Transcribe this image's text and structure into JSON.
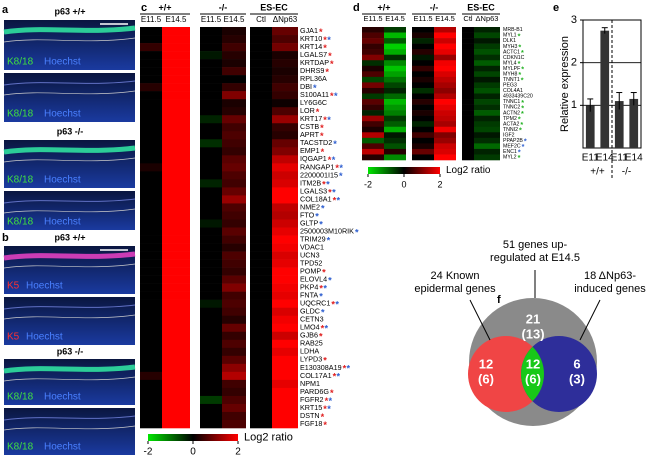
{
  "panel_a": {
    "letter": "a",
    "blocks": [
      {
        "genotype": "p63 +/+",
        "images": [
          {
            "stain": "K8/18",
            "counter": "Hoechst"
          },
          {
            "stain": "K8/18",
            "counter": "Hoechst"
          }
        ]
      },
      {
        "genotype": "p63 -/-",
        "images": [
          {
            "stain": "K8/18",
            "counter": "Hoechst"
          },
          {
            "stain": "K8/18",
            "counter": "Hoechst"
          }
        ]
      }
    ]
  },
  "panel_b": {
    "letter": "b",
    "blocks": [
      {
        "genotype": "p63 +/+",
        "images": [
          {
            "stain": "K5",
            "counter": "Hoechst"
          },
          {
            "stain": "K5",
            "counter": "Hoechst"
          }
        ]
      },
      {
        "genotype": "p63 -/-",
        "images": [
          {
            "stain": "K8/18",
            "counter": "Hoechst"
          },
          {
            "stain": "K8/18",
            "counter": "Hoechst"
          }
        ]
      }
    ]
  },
  "heatmap_c": {
    "letter": "c",
    "groups": [
      "+/+",
      "-/-",
      "ES-EC"
    ],
    "columns": [
      "E11.5",
      "E14.5",
      "E11.5",
      "E14.5",
      "Ctl",
      "ΔNp63"
    ],
    "range": [
      -2,
      2
    ],
    "colorbar_ticks": [
      -2,
      0,
      2
    ],
    "colorbar_label": "Log2 ratio",
    "star_symbol": "*",
    "genes": [
      {
        "name": "GJA1",
        "stars": [
          "#e02020"
        ]
      },
      {
        "name": "KRT10",
        "stars": [
          "#e02020",
          "#3060d0"
        ]
      },
      {
        "name": "KRT14",
        "stars": [
          "#e02020"
        ]
      },
      {
        "name": "LGALS7",
        "stars": [
          "#e02020"
        ]
      },
      {
        "name": "KRTDAP",
        "stars": [
          "#e02020"
        ]
      },
      {
        "name": "DHRS9",
        "stars": [
          "#e02020"
        ]
      },
      {
        "name": "RPL36A",
        "stars": []
      },
      {
        "name": "DBI",
        "stars": [
          "#3060d0"
        ]
      },
      {
        "name": "S100A11",
        "stars": [
          "#e02020",
          "#3060d0"
        ]
      },
      {
        "name": "LY6G6C",
        "stars": []
      },
      {
        "name": "LOR",
        "stars": [
          "#e02020"
        ]
      },
      {
        "name": "KRT17",
        "stars": [
          "#e02020",
          "#3060d0"
        ]
      },
      {
        "name": "CSTB",
        "stars": [
          "#e02020"
        ]
      },
      {
        "name": "APRT",
        "stars": [
          "#e02020"
        ]
      },
      {
        "name": "TACSTD2",
        "stars": [
          "#3060d0"
        ]
      },
      {
        "name": "EMP1",
        "stars": [
          "#e02020"
        ]
      },
      {
        "name": "IQGAP1",
        "stars": [
          "#e02020",
          "#3060d0"
        ]
      },
      {
        "name": "RANGAP1",
        "stars": [
          "#e02020",
          "#3060d0"
        ]
      },
      {
        "name": "2200001I15",
        "stars": [
          "#3060d0"
        ]
      },
      {
        "name": "ITM2B",
        "stars": [
          "#e02020",
          "#3060d0"
        ]
      },
      {
        "name": "LGALS3",
        "stars": [
          "#e02020",
          "#3060d0"
        ]
      },
      {
        "name": "COL18A1",
        "stars": [
          "#e02020",
          "#3060d0"
        ]
      },
      {
        "name": "NME2",
        "stars": [
          "#3060d0"
        ]
      },
      {
        "name": "FTO",
        "stars": [
          "#3060d0"
        ]
      },
      {
        "name": "GLTP",
        "stars": [
          "#3060d0"
        ]
      },
      {
        "name": "2500003M10RIK",
        "stars": [
          "#3060d0"
        ]
      },
      {
        "name": "TRIM29",
        "stars": [
          "#3060d0"
        ]
      },
      {
        "name": "VDAC1",
        "stars": []
      },
      {
        "name": "UCN3",
        "stars": []
      },
      {
        "name": "TPD52",
        "stars": []
      },
      {
        "name": "POMP",
        "stars": [
          "#e02020"
        ]
      },
      {
        "name": "ELOVL4",
        "stars": [
          "#3060d0"
        ]
      },
      {
        "name": "PKP4",
        "stars": [
          "#e02020",
          "#3060d0"
        ]
      },
      {
        "name": "FNTA",
        "stars": [
          "#3060d0"
        ]
      },
      {
        "name": "UQCRC1",
        "stars": [
          "#e02020",
          "#3060d0"
        ]
      },
      {
        "name": "GLDC",
        "stars": [
          "#3060d0"
        ]
      },
      {
        "name": "CETN3",
        "stars": []
      },
      {
        "name": "LMO4",
        "stars": [
          "#e02020",
          "#3060d0"
        ]
      },
      {
        "name": "GJB6",
        "stars": [
          "#e02020"
        ]
      },
      {
        "name": "RAB25",
        "stars": []
      },
      {
        "name": "LDHA",
        "stars": []
      },
      {
        "name": "LYPD3",
        "stars": [
          "#e02020"
        ]
      },
      {
        "name": "E130308A19",
        "stars": [
          "#e02020",
          "#3060d0"
        ]
      },
      {
        "name": "COL17A1",
        "stars": [
          "#e02020",
          "#3060d0"
        ]
      },
      {
        "name": "NPM1",
        "stars": []
      },
      {
        "name": "PARD6G",
        "stars": [
          "#e02020"
        ]
      },
      {
        "name": "FGFR2",
        "stars": [
          "#e02020",
          "#3060d0"
        ]
      },
      {
        "name": "KRT15",
        "stars": [
          "#e02020",
          "#3060d0"
        ]
      },
      {
        "name": "DSTN",
        "stars": [
          "#e02020"
        ]
      },
      {
        "name": "FGF18",
        "stars": [
          "#e02020"
        ]
      }
    ],
    "values": [
      [
        0,
        2,
        0,
        0.2,
        0,
        0.8
      ],
      [
        0,
        2,
        0,
        0.3,
        0,
        0.6
      ],
      [
        0.4,
        2,
        0,
        0.5,
        0,
        0.9
      ],
      [
        0,
        2,
        -0.2,
        0.3,
        0,
        0.2
      ],
      [
        0,
        2,
        0,
        0.2,
        0,
        0.3
      ],
      [
        0,
        2,
        0,
        0.5,
        0,
        0.2
      ],
      [
        0,
        2,
        0,
        0,
        0,
        0.3
      ],
      [
        0.3,
        2,
        0,
        0.4,
        0,
        0.5
      ],
      [
        0,
        2,
        0,
        1,
        0,
        0.4
      ],
      [
        0,
        2,
        0,
        0.2,
        0,
        0.1
      ],
      [
        0,
        2,
        0,
        0.3,
        0,
        0.6
      ],
      [
        0,
        2,
        -0.3,
        0.8,
        0,
        1.2
      ],
      [
        0,
        2,
        0,
        0.5,
        0,
        0.4
      ],
      [
        0,
        2,
        0,
        0.6,
        0,
        0.3
      ],
      [
        0,
        2,
        -0.4,
        0.5,
        0,
        0.8
      ],
      [
        0,
        2,
        0,
        0.4,
        0,
        1
      ],
      [
        0,
        2,
        0,
        0.7,
        0,
        1.5
      ],
      [
        0.2,
        2,
        0,
        0.8,
        0,
        1.8
      ],
      [
        0,
        2,
        0,
        0.6,
        0,
        1.6
      ],
      [
        0,
        2,
        -0.3,
        0.5,
        0,
        1.7
      ],
      [
        0,
        2,
        0,
        0.8,
        0,
        2
      ],
      [
        0,
        2,
        0,
        1.2,
        0,
        2
      ],
      [
        0,
        2,
        0,
        0.6,
        0,
        1.5
      ],
      [
        0,
        2,
        0,
        0.5,
        0,
        1.4
      ],
      [
        0,
        2,
        -0.2,
        0.4,
        0,
        1.6
      ],
      [
        0,
        2,
        0,
        0.7,
        0,
        1.8
      ],
      [
        0,
        2,
        0,
        0.5,
        0,
        2
      ],
      [
        0,
        2,
        0,
        0.3,
        0,
        1.9
      ],
      [
        0,
        2,
        0,
        0.6,
        0,
        1.7
      ],
      [
        0,
        2,
        0,
        0.5,
        0,
        1.8
      ],
      [
        0,
        2,
        0,
        0.4,
        0,
        2
      ],
      [
        0,
        2,
        0,
        0.7,
        0,
        2
      ],
      [
        0,
        2,
        0,
        1,
        0,
        1.9
      ],
      [
        0,
        2,
        0,
        0.5,
        0,
        1.8
      ],
      [
        0,
        2,
        -0.2,
        0.6,
        0,
        2
      ],
      [
        0,
        2,
        0,
        0.5,
        0,
        1.7
      ],
      [
        0,
        2,
        0,
        0.3,
        0,
        1.9
      ],
      [
        0,
        2,
        0,
        0.8,
        0,
        2
      ],
      [
        0,
        2,
        0,
        0.4,
        0,
        1.6
      ],
      [
        0,
        2,
        0,
        0.6,
        0,
        2
      ],
      [
        0,
        2,
        0,
        0.4,
        0,
        1.8
      ],
      [
        0,
        2,
        0,
        0.7,
        0,
        2
      ],
      [
        0,
        2,
        0,
        1.1,
        0,
        2
      ],
      [
        0.3,
        2,
        0,
        1.4,
        0,
        2
      ],
      [
        0,
        2,
        0,
        0.5,
        0,
        1.8
      ],
      [
        0,
        2,
        0,
        0.4,
        0,
        2
      ],
      [
        0,
        2,
        -0.5,
        0.6,
        0,
        2
      ],
      [
        0,
        2,
        0,
        0.8,
        0,
        2
      ],
      [
        0,
        2,
        0,
        0.5,
        0,
        2
      ],
      [
        0,
        2,
        0,
        0.6,
        0,
        2
      ]
    ]
  },
  "heatmap_d": {
    "letter": "d",
    "groups": [
      "+/+",
      "-/-",
      "ES-EC"
    ],
    "columns": [
      "E11.5",
      "E14.5",
      "E11.5",
      "E14.5",
      "Ctl",
      "ΔNp63"
    ],
    "range": [
      -2,
      2
    ],
    "colorbar_ticks": [
      -2,
      0,
      2
    ],
    "colorbar_label": "Log2 ratio",
    "star_symbol": "*",
    "genes": [
      {
        "name": "MRB-B1",
        "stars": []
      },
      {
        "name": "MYL1",
        "stars": [
          "#20b020"
        ]
      },
      {
        "name": "DLK1",
        "stars": []
      },
      {
        "name": "MYH3",
        "stars": [
          "#20b020"
        ]
      },
      {
        "name": "ACTC1",
        "stars": [
          "#20b020"
        ]
      },
      {
        "name": "CDKN1C",
        "stars": []
      },
      {
        "name": "MYL4",
        "stars": [
          "#20b020"
        ]
      },
      {
        "name": "MYLPF",
        "stars": [
          "#20b020"
        ]
      },
      {
        "name": "MYH8",
        "stars": [
          "#20b020"
        ]
      },
      {
        "name": "TNNT1",
        "stars": [
          "#20b020"
        ]
      },
      {
        "name": "PEG3",
        "stars": []
      },
      {
        "name": "COL4A1",
        "stars": []
      },
      {
        "name": "4933439C20",
        "stars": []
      },
      {
        "name": "TNNC1",
        "stars": [
          "#20b020"
        ]
      },
      {
        "name": "TNNC2",
        "stars": [
          "#20b020"
        ]
      },
      {
        "name": "ACTN2",
        "stars": [
          "#20b020"
        ]
      },
      {
        "name": "TPM2",
        "stars": [
          "#20b020"
        ]
      },
      {
        "name": "ACTA2",
        "stars": [
          "#20b020"
        ]
      },
      {
        "name": "TNNI2",
        "stars": [
          "#20b020"
        ]
      },
      {
        "name": "IGF2",
        "stars": []
      },
      {
        "name": "PPAP2B",
        "stars": [
          "#3060d0"
        ]
      },
      {
        "name": "MEF2C",
        "stars": [
          "#3060d0"
        ]
      },
      {
        "name": "ENC1",
        "stars": [
          "#3060d0"
        ]
      },
      {
        "name": "MYL2",
        "stars": [
          "#20b020"
        ]
      }
    ],
    "values": [
      [
        0.3,
        -0.5,
        0,
        1.4,
        0,
        -0.3
      ],
      [
        0.6,
        -1.6,
        0.2,
        2,
        0,
        -0.6
      ],
      [
        0.8,
        -0.8,
        -0.3,
        1.6,
        0,
        -0.2
      ],
      [
        0.4,
        -1.8,
        0,
        2,
        0,
        -0.5
      ],
      [
        0.5,
        -1.5,
        0.3,
        1.8,
        0,
        -0.7
      ],
      [
        1,
        -0.4,
        -0.2,
        1.2,
        0,
        -0.4
      ],
      [
        -0.4,
        -1.2,
        0,
        1.9,
        0,
        -0.8
      ],
      [
        0.2,
        -1.7,
        0.4,
        2,
        0,
        -0.3
      ],
      [
        0.6,
        -1.4,
        0,
        1.7,
        0,
        -0.6
      ],
      [
        -0.6,
        -1,
        0.2,
        1.5,
        0,
        -0.2
      ],
      [
        0.9,
        -0.6,
        0,
        1.3,
        0,
        -0.5
      ],
      [
        0.3,
        -0.3,
        -0.4,
        1.1,
        0,
        -0.7
      ],
      [
        -0.5,
        -0.9,
        0,
        1.4,
        0,
        -0.3
      ],
      [
        0.7,
        -1.6,
        0.3,
        2,
        0,
        -0.6
      ],
      [
        0.4,
        -1.3,
        0,
        1.8,
        0,
        -0.4
      ],
      [
        -0.3,
        -1.1,
        0.2,
        1.6,
        0,
        -0.8
      ],
      [
        1.2,
        -0.5,
        0,
        1.5,
        0,
        -0.3
      ],
      [
        0.5,
        -0.8,
        -0.3,
        1.3,
        0,
        -0.5
      ],
      [
        0.2,
        -1.5,
        0,
        1.9,
        0,
        -0.6
      ],
      [
        1.4,
        -0.2,
        0.5,
        1,
        0,
        -0.2
      ],
      [
        -0.8,
        -0.4,
        0,
        1.2,
        0,
        -0.4
      ],
      [
        0.6,
        -0.7,
        0.2,
        1.6,
        0,
        -0.9
      ],
      [
        1.5,
        0.3,
        0.8,
        1.7,
        0,
        -0.3
      ],
      [
        0.3,
        -1.2,
        0,
        2,
        0,
        -0.5
      ]
    ]
  },
  "chart_data": {
    "type": "bar",
    "letter": "e",
    "ylabel": "Relative expression",
    "categories": [
      "E11",
      "E14",
      "E11",
      "E14"
    ],
    "groups": [
      "+/+",
      "-/-"
    ],
    "values": [
      1,
      2.75,
      1.1,
      1.15
    ],
    "errors": [
      0.15,
      0.07,
      0.2,
      0.15
    ],
    "color": "#333333",
    "ylim": [
      0,
      3
    ],
    "yticks": [
      1,
      2,
      3
    ],
    "grid": true
  },
  "venn": {
    "letter": "f",
    "outer": {
      "label": [
        "51 genes up-",
        "regulated at E14.5"
      ],
      "count": "21",
      "known": "(13)"
    },
    "left": {
      "label": [
        "24 Known",
        "epidermal genes"
      ],
      "count": "12",
      "known": "(6)"
    },
    "middle": {
      "count": "12",
      "known": "(6)"
    },
    "right": {
      "label": [
        "18 ΔNp63-",
        "induced genes"
      ],
      "count": "6",
      "known": "(3)"
    },
    "colors": {
      "outer": "#8a8a8a",
      "left": "#f04545",
      "middle": "#18c818",
      "right": "#2e2e9a"
    }
  }
}
